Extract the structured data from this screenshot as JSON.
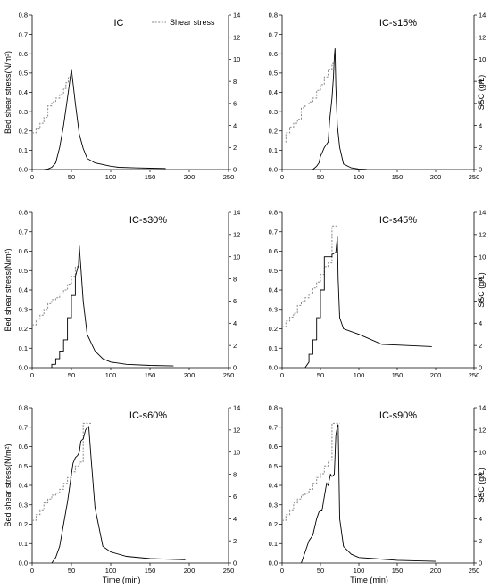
{
  "chart_data": [
    {
      "type": "line",
      "title": "IC",
      "xlim": [
        0,
        250
      ],
      "ylim": [
        0,
        0.8
      ],
      "y2lim": [
        0,
        14
      ],
      "x_ticks": [
        0,
        50,
        100,
        150,
        200,
        250
      ],
      "y_ticks": [
        0.0,
        0.1,
        0.2,
        0.3,
        0.4,
        0.5,
        0.6,
        0.7,
        0.8
      ],
      "y2_ticks": [
        0,
        2,
        4,
        6,
        8,
        10,
        12,
        14
      ],
      "x_tick_labels": [
        "0",
        "50",
        "100",
        "150",
        "200",
        "250"
      ],
      "y_tick_labels": [
        "0.0",
        "0.1",
        "0.2",
        "0.3",
        "0.4",
        "0.5",
        "0.6",
        "0.7",
        "0.8"
      ],
      "y2_tick_labels": [
        "0",
        "2",
        "4",
        "6",
        "8",
        "10",
        "12",
        "14"
      ],
      "ylabel": "Bed shear stress(N/m²)",
      "y2label": "",
      "xlabel": "",
      "legend": "Shear stress",
      "series": [
        {
          "name": "Shear stress",
          "axis": "left",
          "style": "dotted",
          "x": [
            0,
            5,
            5,
            10,
            10,
            15,
            15,
            20,
            20,
            25,
            25,
            30,
            30,
            35,
            35,
            40,
            40,
            43,
            43,
            46,
            46,
            50
          ],
          "y": [
            0.19,
            0.19,
            0.21,
            0.21,
            0.24,
            0.24,
            0.27,
            0.27,
            0.33,
            0.33,
            0.35,
            0.35,
            0.37,
            0.37,
            0.39,
            0.39,
            0.42,
            0.42,
            0.45,
            0.45,
            0.48,
            0.48
          ]
        },
        {
          "axis": "right",
          "style": "solid",
          "x": [
            15,
            20,
            25,
            30,
            35,
            40,
            45,
            50,
            55,
            60,
            65,
            70,
            80,
            90,
            100,
            110,
            130,
            150,
            170
          ],
          "y": [
            0,
            0.05,
            0.2,
            0.6,
            2.0,
            4.0,
            6.5,
            9.1,
            6.0,
            3.2,
            1.9,
            1.0,
            0.6,
            0.45,
            0.3,
            0.2,
            0.15,
            0.12,
            0.1
          ]
        }
      ]
    },
    {
      "type": "line",
      "title": "IC-s15%",
      "xlim": [
        0,
        250
      ],
      "ylim": [
        0,
        0.8
      ],
      "y2lim": [
        0,
        14
      ],
      "x_ticks": [
        0,
        50,
        100,
        150,
        200,
        250
      ],
      "y_ticks": [
        0.0,
        0.1,
        0.2,
        0.3,
        0.4,
        0.5,
        0.6,
        0.7,
        0.8
      ],
      "y2_ticks": [
        0,
        2,
        4,
        6,
        8,
        10,
        12,
        14
      ],
      "x_tick_labels": [
        "0",
        "50",
        "100",
        "150",
        "200",
        "250"
      ],
      "y_tick_labels": [
        "0.0",
        "0.1",
        "0.2",
        "0.3",
        "0.4",
        "0.5",
        "0.6",
        "0.7",
        "0.8"
      ],
      "y2_tick_labels": [
        "0",
        "2",
        "4",
        "6",
        "8",
        "10",
        "12",
        "14"
      ],
      "ylabel": "",
      "y2label": "SSC (g/L)",
      "xlabel": "",
      "series": [
        {
          "axis": "left",
          "style": "dotted",
          "x": [
            5,
            5,
            10,
            10,
            15,
            15,
            20,
            20,
            25,
            25,
            30,
            30,
            35,
            35,
            40,
            40,
            45,
            45,
            50,
            50,
            55,
            55,
            60,
            60,
            65,
            65,
            68
          ],
          "y": [
            0.14,
            0.19,
            0.19,
            0.22,
            0.22,
            0.24,
            0.24,
            0.26,
            0.26,
            0.32,
            0.32,
            0.34,
            0.34,
            0.35,
            0.35,
            0.37,
            0.37,
            0.41,
            0.41,
            0.44,
            0.44,
            0.48,
            0.48,
            0.52,
            0.52,
            0.55,
            0.55
          ]
        },
        {
          "axis": "right",
          "style": "solid",
          "x": [
            40,
            45,
            48,
            50,
            52,
            55,
            58,
            60,
            62,
            65,
            67,
            68,
            69,
            70,
            72,
            75,
            80,
            90,
            100,
            110
          ],
          "y": [
            0,
            0.3,
            0.6,
            1.2,
            1.5,
            2.0,
            2.3,
            2.5,
            4.5,
            6.5,
            8.5,
            10.2,
            11.0,
            7.5,
            4.0,
            2.0,
            0.5,
            0.15,
            0.05,
            0.02
          ]
        }
      ]
    },
    {
      "type": "line",
      "title": "IC-s30%",
      "xlim": [
        0,
        250
      ],
      "ylim": [
        0,
        0.8
      ],
      "y2lim": [
        0,
        14
      ],
      "x_ticks": [
        0,
        50,
        100,
        150,
        200,
        250
      ],
      "y_ticks": [
        0.0,
        0.1,
        0.2,
        0.3,
        0.4,
        0.5,
        0.6,
        0.7,
        0.8
      ],
      "y2_ticks": [
        0,
        2,
        4,
        6,
        8,
        10,
        12,
        14
      ],
      "x_tick_labels": [
        "0",
        "50",
        "100",
        "150",
        "200",
        "250"
      ],
      "y_tick_labels": [
        "0.0",
        "0.1",
        "0.2",
        "0.3",
        "0.4",
        "0.5",
        "0.6",
        "0.7",
        "0.8"
      ],
      "y2_tick_labels": [
        "0",
        "2",
        "4",
        "6",
        "8",
        "10",
        "12",
        "14"
      ],
      "ylabel": "Bed shear stress(N/m²)",
      "y2label": "",
      "xlabel": "",
      "series": [
        {
          "axis": "left",
          "style": "dotted",
          "x": [
            0,
            5,
            5,
            10,
            10,
            15,
            15,
            20,
            20,
            25,
            25,
            30,
            30,
            35,
            35,
            40,
            40,
            45,
            45,
            50,
            50,
            55,
            55,
            60
          ],
          "y": [
            0.22,
            0.22,
            0.25,
            0.25,
            0.27,
            0.27,
            0.3,
            0.3,
            0.33,
            0.33,
            0.35,
            0.35,
            0.36,
            0.36,
            0.38,
            0.38,
            0.4,
            0.4,
            0.43,
            0.43,
            0.47,
            0.47,
            0.52,
            0.52
          ]
        },
        {
          "axis": "right",
          "style": "solid",
          "x": [
            25,
            25,
            30,
            30,
            35,
            35,
            40,
            40,
            45,
            45,
            50,
            50,
            55,
            55,
            58,
            59,
            60,
            62,
            65,
            70,
            80,
            90,
            100,
            120,
            150,
            180
          ],
          "y": [
            0,
            0.3,
            0.3,
            0.8,
            0.8,
            1.5,
            1.5,
            2.5,
            2.5,
            4.5,
            4.5,
            6.5,
            6.5,
            8.2,
            9.0,
            9.2,
            11.0,
            9.0,
            6.0,
            3.0,
            1.5,
            0.8,
            0.5,
            0.3,
            0.2,
            0.15
          ]
        }
      ]
    },
    {
      "type": "line",
      "title": "IC-s45%",
      "xlim": [
        0,
        250
      ],
      "ylim": [
        0,
        0.8
      ],
      "y2lim": [
        0,
        14
      ],
      "x_ticks": [
        0,
        50,
        100,
        150,
        200,
        250
      ],
      "y_ticks": [
        0.0,
        0.1,
        0.2,
        0.3,
        0.4,
        0.5,
        0.6,
        0.7,
        0.8
      ],
      "y2_ticks": [
        0,
        2,
        4,
        6,
        8,
        10,
        12,
        14
      ],
      "x_tick_labels": [
        "0",
        "50",
        "100",
        "150",
        "200",
        "250"
      ],
      "y_tick_labels": [
        "0.0",
        "0.1",
        "0.2",
        "0.3",
        "0.4",
        "0.5",
        "0.6",
        "0.7",
        "0.8"
      ],
      "y2_tick_labels": [
        "0",
        "2",
        "4",
        "6",
        "8",
        "10",
        "12",
        "14"
      ],
      "ylabel": "",
      "y2label": "SSC (g/L)",
      "xlabel": "",
      "series": [
        {
          "axis": "left",
          "style": "dotted",
          "x": [
            0,
            5,
            5,
            10,
            10,
            15,
            15,
            20,
            20,
            25,
            25,
            30,
            30,
            35,
            35,
            40,
            40,
            45,
            45,
            50,
            50,
            55,
            55,
            60,
            60,
            65,
            65,
            70,
            70,
            73
          ],
          "y": [
            0.21,
            0.21,
            0.24,
            0.24,
            0.26,
            0.26,
            0.28,
            0.28,
            0.32,
            0.32,
            0.34,
            0.34,
            0.36,
            0.36,
            0.38,
            0.38,
            0.41,
            0.41,
            0.44,
            0.44,
            0.48,
            0.48,
            0.52,
            0.52,
            0.54,
            0.54,
            0.73,
            0.73,
            0.73,
            0.73
          ]
        },
        {
          "axis": "right",
          "style": "solid",
          "x": [
            30,
            35,
            35,
            40,
            40,
            45,
            45,
            50,
            50,
            55,
            55,
            60,
            65,
            65,
            70,
            72,
            73,
            75,
            80,
            100,
            130,
            160,
            195
          ],
          "y": [
            0,
            0.5,
            1.2,
            1.2,
            2.5,
            2.5,
            4.5,
            4.5,
            7.0,
            7.0,
            10.0,
            10.0,
            10.0,
            10.2,
            10.4,
            11.8,
            8.0,
            4.5,
            3.5,
            3.0,
            2.1,
            2.0,
            1.9
          ]
        }
      ]
    },
    {
      "type": "line",
      "title": "IC-s60%",
      "xlim": [
        0,
        250
      ],
      "ylim": [
        0,
        0.8
      ],
      "y2lim": [
        0,
        14
      ],
      "x_ticks": [
        0,
        50,
        100,
        150,
        200,
        250
      ],
      "y_ticks": [
        0.0,
        0.1,
        0.2,
        0.3,
        0.4,
        0.5,
        0.6,
        0.7,
        0.8
      ],
      "y2_ticks": [
        0,
        2,
        4,
        6,
        8,
        10,
        12,
        14
      ],
      "x_tick_labels": [
        "0",
        "50",
        "100",
        "150",
        "200",
        "250"
      ],
      "y_tick_labels": [
        "0.0",
        "0.1",
        "0.2",
        "0.3",
        "0.4",
        "0.5",
        "0.6",
        "0.7",
        "0.8"
      ],
      "y2_tick_labels": [
        "0",
        "2",
        "4",
        "6",
        "8",
        "10",
        "12",
        "14"
      ],
      "ylabel": "Bed shear stress(N/m²)",
      "y2label": "",
      "xlabel": "Time (min)",
      "series": [
        {
          "axis": "left",
          "style": "dotted",
          "x": [
            0,
            5,
            5,
            10,
            10,
            15,
            15,
            20,
            20,
            25,
            25,
            30,
            30,
            35,
            35,
            40,
            40,
            45,
            45,
            50,
            50,
            55,
            55,
            60,
            60,
            65,
            65,
            70,
            70,
            75
          ],
          "y": [
            0.22,
            0.22,
            0.25,
            0.25,
            0.27,
            0.27,
            0.31,
            0.31,
            0.33,
            0.33,
            0.35,
            0.35,
            0.36,
            0.36,
            0.38,
            0.38,
            0.41,
            0.41,
            0.44,
            0.44,
            0.47,
            0.47,
            0.5,
            0.5,
            0.52,
            0.52,
            0.72,
            0.72,
            0.72,
            0.72
          ]
        },
        {
          "axis": "right",
          "style": "solid",
          "x": [
            25,
            30,
            35,
            40,
            45,
            50,
            52,
            55,
            58,
            60,
            62,
            65,
            68,
            70,
            72,
            75,
            80,
            90,
            100,
            120,
            150,
            195
          ],
          "y": [
            0,
            0.5,
            1.5,
            3.5,
            5.5,
            8.0,
            9.0,
            9.5,
            9.7,
            10.0,
            11.0,
            11.2,
            12.0,
            12.2,
            12.3,
            9.5,
            5.0,
            1.5,
            1.0,
            0.6,
            0.4,
            0.3
          ]
        }
      ]
    },
    {
      "type": "line",
      "title": "IC-s90%",
      "xlim": [
        0,
        250
      ],
      "ylim": [
        0,
        0.8
      ],
      "y2lim": [
        0,
        14
      ],
      "x_ticks": [
        0,
        50,
        100,
        150,
        200,
        250
      ],
      "y_ticks": [
        0.0,
        0.1,
        0.2,
        0.3,
        0.4,
        0.5,
        0.6,
        0.7,
        0.8
      ],
      "y2_ticks": [
        0,
        2,
        4,
        6,
        8,
        10,
        12,
        14
      ],
      "x_tick_labels": [
        "0",
        "50",
        "100",
        "150",
        "200",
        "250"
      ],
      "y_tick_labels": [
        "0.0",
        "0.1",
        "0.2",
        "0.3",
        "0.4",
        "0.5",
        "0.6",
        "0.7",
        "0.8"
      ],
      "y2_tick_labels": [
        "0",
        "2",
        "4",
        "6",
        "8",
        "10",
        "12",
        "14"
      ],
      "ylabel": "",
      "y2label": "SSC (g/L)",
      "xlabel": "Time (min)",
      "series": [
        {
          "axis": "left",
          "style": "dotted",
          "x": [
            0,
            5,
            5,
            10,
            10,
            15,
            15,
            20,
            20,
            25,
            25,
            30,
            30,
            35,
            35,
            40,
            40,
            45,
            45,
            50,
            50,
            55,
            55,
            60,
            60,
            65,
            65,
            70,
            70,
            75
          ],
          "y": [
            0.22,
            0.22,
            0.25,
            0.25,
            0.27,
            0.27,
            0.31,
            0.31,
            0.33,
            0.33,
            0.35,
            0.35,
            0.36,
            0.36,
            0.38,
            0.38,
            0.41,
            0.41,
            0.44,
            0.44,
            0.46,
            0.46,
            0.5,
            0.5,
            0.53,
            0.53,
            0.72,
            0.72,
            0.72,
            0.72
          ]
        },
        {
          "axis": "right",
          "style": "solid",
          "x": [
            25,
            30,
            35,
            40,
            45,
            48,
            50,
            52,
            55,
            58,
            60,
            63,
            65,
            68,
            70,
            72,
            73,
            75,
            80,
            90,
            100,
            120,
            150,
            200
          ],
          "y": [
            0,
            1.0,
            2.0,
            2.5,
            4.0,
            4.6,
            4.7,
            4.7,
            6.0,
            7.2,
            7.0,
            8.0,
            7.8,
            8.0,
            11.5,
            12.3,
            12.5,
            4.0,
            1.5,
            0.8,
            0.5,
            0.4,
            0.25,
            0.15
          ]
        }
      ]
    }
  ]
}
